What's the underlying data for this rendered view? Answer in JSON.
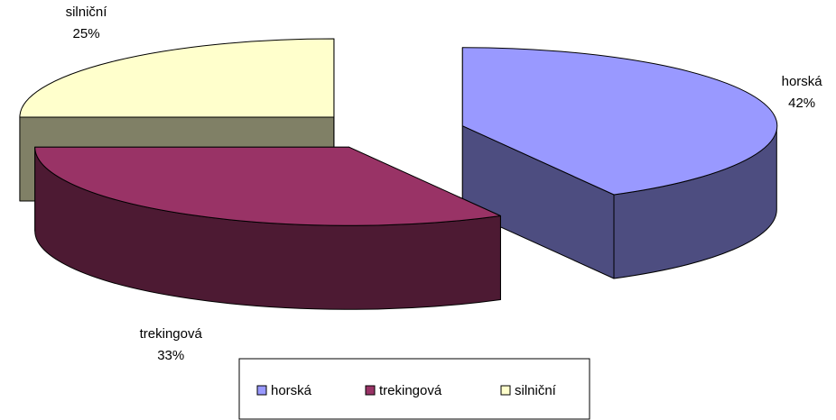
{
  "chart_data": {
    "type": "pie3d",
    "categories": [
      "horská",
      "trekingová",
      "silniční"
    ],
    "values": [
      42,
      33,
      25
    ],
    "value_labels": [
      "42%",
      "33%",
      "25%"
    ],
    "colors": [
      "#9999ff",
      "#993366",
      "#ffffcc"
    ],
    "legend": "bottom"
  }
}
